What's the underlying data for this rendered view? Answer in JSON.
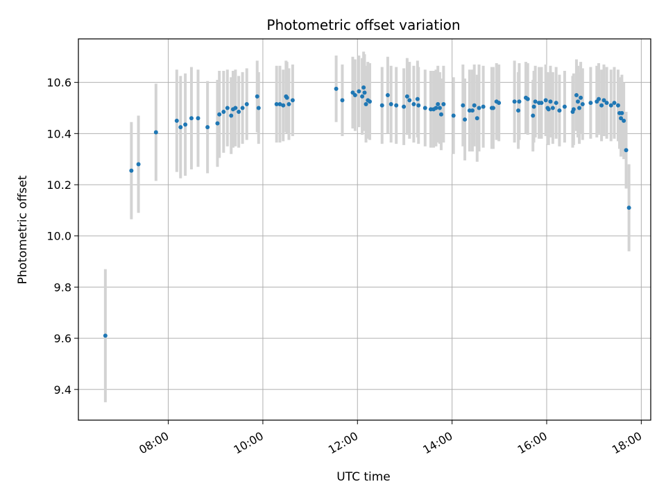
{
  "chart_data": {
    "type": "scatter",
    "title": "Photometric offset variation",
    "xlabel": "UTC time",
    "ylabel": "Photometric offset",
    "x_unit": "hours (UTC)",
    "xlim": [
      6.1,
      18.2
    ],
    "ylim": [
      9.28,
      10.77
    ],
    "grid": true,
    "x_tick_values": [
      8,
      10,
      12,
      14,
      16,
      18
    ],
    "x_tick_labels": [
      "08:00",
      "10:00",
      "12:00",
      "14:00",
      "16:00",
      "18:00"
    ],
    "y_tick_values": [
      9.4,
      9.6,
      9.8,
      10.0,
      10.2,
      10.4,
      10.6
    ],
    "y_tick_labels": [
      "9.4",
      "9.6",
      "9.8",
      "10.0",
      "10.2",
      "10.4",
      "10.6"
    ],
    "colors": {
      "points": "#1f77b4",
      "errorbars": "#d3d3d3",
      "grid": "#b0b0b0"
    },
    "series": [
      {
        "x": [
          6.67,
          7.22,
          7.37,
          7.74,
          8.18,
          8.26,
          8.36,
          8.49,
          8.63,
          8.83,
          9.04,
          9.08,
          9.17,
          9.25,
          9.33,
          9.37,
          9.42,
          9.49,
          9.57,
          9.66,
          9.88,
          9.91,
          10.29,
          10.36,
          10.43,
          10.49,
          10.51,
          10.55,
          10.63,
          11.55,
          11.68,
          11.9,
          11.95,
          12.03,
          12.1,
          12.13,
          12.15,
          12.18,
          12.22,
          12.26,
          12.52,
          12.64,
          12.71,
          12.82,
          12.98,
          13.05,
          13.1,
          13.19,
          13.27,
          13.29,
          13.43,
          13.55,
          13.61,
          13.66,
          13.7,
          13.74,
          13.77,
          13.82,
          14.03,
          14.23,
          14.27,
          14.37,
          14.43,
          14.47,
          14.53,
          14.57,
          14.66,
          14.84,
          14.87,
          14.94,
          14.99,
          15.32,
          15.4,
          15.42,
          15.56,
          15.6,
          15.71,
          15.73,
          15.76,
          15.84,
          15.89,
          15.98,
          16.02,
          16.04,
          16.08,
          16.13,
          16.2,
          16.27,
          16.38,
          16.55,
          16.57,
          16.63,
          16.66,
          16.69,
          16.72,
          16.76,
          16.93,
          17.06,
          17.1,
          17.16,
          17.21,
          17.27,
          17.36,
          17.43,
          17.51,
          17.54,
          17.57,
          17.59,
          17.63,
          17.68,
          17.74
        ],
        "y": [
          9.61,
          10.255,
          10.28,
          10.405,
          10.45,
          10.425,
          10.435,
          10.46,
          10.46,
          10.425,
          10.44,
          10.475,
          10.485,
          10.5,
          10.47,
          10.495,
          10.5,
          10.485,
          10.5,
          10.515,
          10.545,
          10.5,
          10.515,
          10.515,
          10.51,
          10.545,
          10.54,
          10.515,
          10.53,
          10.575,
          10.53,
          10.56,
          10.55,
          10.565,
          10.545,
          10.58,
          10.56,
          10.515,
          10.53,
          10.525,
          10.51,
          10.55,
          10.515,
          10.51,
          10.505,
          10.545,
          10.53,
          10.515,
          10.535,
          10.51,
          10.5,
          10.495,
          10.495,
          10.5,
          10.515,
          10.5,
          10.475,
          10.515,
          10.47,
          10.51,
          10.455,
          10.49,
          10.49,
          10.51,
          10.46,
          10.5,
          10.505,
          10.5,
          10.5,
          10.525,
          10.52,
          10.525,
          10.49,
          10.525,
          10.54,
          10.535,
          10.47,
          10.505,
          10.525,
          10.52,
          10.52,
          10.53,
          10.5,
          10.495,
          10.525,
          10.5,
          10.52,
          10.49,
          10.505,
          10.485,
          10.495,
          10.55,
          10.525,
          10.5,
          10.54,
          10.515,
          10.52,
          10.525,
          10.535,
          10.51,
          10.53,
          10.52,
          10.51,
          10.52,
          10.51,
          10.48,
          10.46,
          10.48,
          10.45,
          10.335,
          10.11
        ],
        "yerr": [
          0.26,
          0.19,
          0.19,
          0.19,
          0.2,
          0.2,
          0.2,
          0.2,
          0.19,
          0.18,
          0.17,
          0.17,
          0.16,
          0.15,
          0.15,
          0.15,
          0.15,
          0.14,
          0.14,
          0.14,
          0.14,
          0.14,
          0.15,
          0.15,
          0.14,
          0.14,
          0.14,
          0.14,
          0.14,
          0.13,
          0.14,
          0.14,
          0.14,
          0.14,
          0.15,
          0.14,
          0.15,
          0.15,
          0.15,
          0.15,
          0.15,
          0.15,
          0.15,
          0.15,
          0.15,
          0.15,
          0.15,
          0.15,
          0.15,
          0.15,
          0.15,
          0.15,
          0.15,
          0.15,
          0.15,
          0.14,
          0.14,
          0.15,
          0.15,
          0.16,
          0.16,
          0.16,
          0.16,
          0.16,
          0.17,
          0.17,
          0.16,
          0.16,
          0.16,
          0.15,
          0.15,
          0.16,
          0.15,
          0.15,
          0.14,
          0.14,
          0.14,
          0.14,
          0.14,
          0.14,
          0.14,
          0.14,
          0.14,
          0.14,
          0.14,
          0.14,
          0.14,
          0.14,
          0.14,
          0.14,
          0.14,
          0.14,
          0.14,
          0.14,
          0.14,
          0.14,
          0.14,
          0.14,
          0.14,
          0.14,
          0.14,
          0.14,
          0.14,
          0.14,
          0.14,
          0.14,
          0.15,
          0.15,
          0.15,
          0.15,
          0.17
        ]
      }
    ]
  }
}
